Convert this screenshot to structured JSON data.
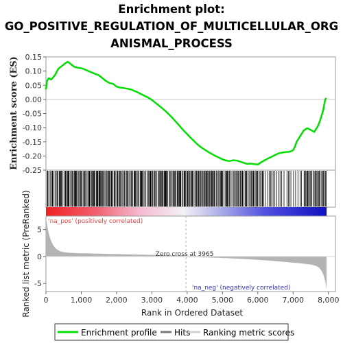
{
  "chart_data": {
    "type": "line",
    "title_lines": [
      "Enrichment plot:",
      "GO_POSITIVE_REGULATION_OF_MULTICELLULAR_ORG",
      "ANISMAL_PROCESS"
    ],
    "xlabel": "Rank in Ordered Dataset",
    "es_ylabel": "Enrichment score (ES)",
    "metric_ylabel": "Ranked list metric (PreRanked)",
    "xlim": [
      0,
      8200
    ],
    "x_ticks": [
      0,
      1000,
      2000,
      3000,
      4000,
      5000,
      6000,
      7000,
      8000
    ],
    "x_tick_labels": [
      "0",
      "1,000",
      "2,000",
      "3,000",
      "4,000",
      "5,000",
      "6,000",
      "7,000",
      "8,000"
    ],
    "es_ylim": [
      -0.25,
      0.15
    ],
    "es_ticks": [
      0.15,
      0.1,
      0.05,
      0.0,
      -0.05,
      -0.1,
      -0.15,
      -0.2,
      -0.25
    ],
    "es_tick_labels": [
      "0.15",
      "0.10",
      "0.05",
      "0.00",
      "-0.05",
      "-0.10",
      "-0.15",
      "-0.20",
      "-0.25"
    ],
    "metric_ylim": [
      -6.5,
      7.5
    ],
    "metric_ticks": [
      5,
      0,
      -5
    ],
    "metric_tick_labels": [
      "5",
      "0",
      "-5"
    ],
    "series": [
      {
        "name": "Enrichment profile",
        "color": "#00dd00",
        "x": [
          0,
          30,
          80,
          150,
          250,
          350,
          450,
          550,
          620,
          700,
          800,
          900,
          1000,
          1100,
          1200,
          1300,
          1400,
          1500,
          1600,
          1700,
          1800,
          1900,
          2000,
          2100,
          2200,
          2300,
          2400,
          2500,
          2600,
          2700,
          2800,
          2900,
          3000,
          3100,
          3200,
          3300,
          3400,
          3500,
          3600,
          3700,
          3800,
          3900,
          4000,
          4100,
          4200,
          4300,
          4400,
          4500,
          4600,
          4700,
          4800,
          4900,
          5000,
          5100,
          5200,
          5300,
          5400,
          5500,
          5600,
          5700,
          5800,
          5900,
          6000,
          6100,
          6200,
          6300,
          6400,
          6500,
          6600,
          6700,
          6800,
          6900,
          7000,
          7050,
          7100,
          7200,
          7300,
          7400,
          7500,
          7600,
          7650,
          7700,
          7750,
          7800,
          7850,
          7880,
          7910,
          7940
        ],
        "y": [
          0.035,
          0.065,
          0.075,
          0.07,
          0.085,
          0.108,
          0.118,
          0.128,
          0.133,
          0.125,
          0.115,
          0.112,
          0.11,
          0.106,
          0.1,
          0.095,
          0.09,
          0.085,
          0.075,
          0.065,
          0.058,
          0.055,
          0.045,
          0.042,
          0.04,
          0.038,
          0.035,
          0.03,
          0.025,
          0.018,
          0.012,
          0.006,
          -0.002,
          -0.012,
          -0.022,
          -0.032,
          -0.043,
          -0.055,
          -0.068,
          -0.082,
          -0.096,
          -0.11,
          -0.123,
          -0.136,
          -0.148,
          -0.16,
          -0.17,
          -0.178,
          -0.186,
          -0.193,
          -0.2,
          -0.206,
          -0.212,
          -0.216,
          -0.218,
          -0.215,
          -0.216,
          -0.22,
          -0.224,
          -0.228,
          -0.227,
          -0.229,
          -0.23,
          -0.222,
          -0.215,
          -0.208,
          -0.202,
          -0.196,
          -0.19,
          -0.188,
          -0.186,
          -0.185,
          -0.18,
          -0.168,
          -0.15,
          -0.13,
          -0.11,
          -0.102,
          -0.108,
          -0.115,
          -0.105,
          -0.095,
          -0.08,
          -0.06,
          -0.04,
          -0.02,
          0.0,
          0.005
        ]
      }
    ],
    "legend": [
      "Enrichment profile",
      "Hits",
      "Ranking metric scores"
    ],
    "annotations": {
      "pos": "'na_pos' (positively correlated)",
      "neg": "'na_neg' (negatively correlated)",
      "zero_cross": "Zero cross at 3965"
    },
    "zero_cross_rank": 3965,
    "total_ranks": 7950,
    "colors": {
      "es_line": "#00dd00",
      "pos_label": "#e04040",
      "neg_label": "#3030c0",
      "metric_fill": "#b4b4b4",
      "hits": "#000000"
    }
  }
}
